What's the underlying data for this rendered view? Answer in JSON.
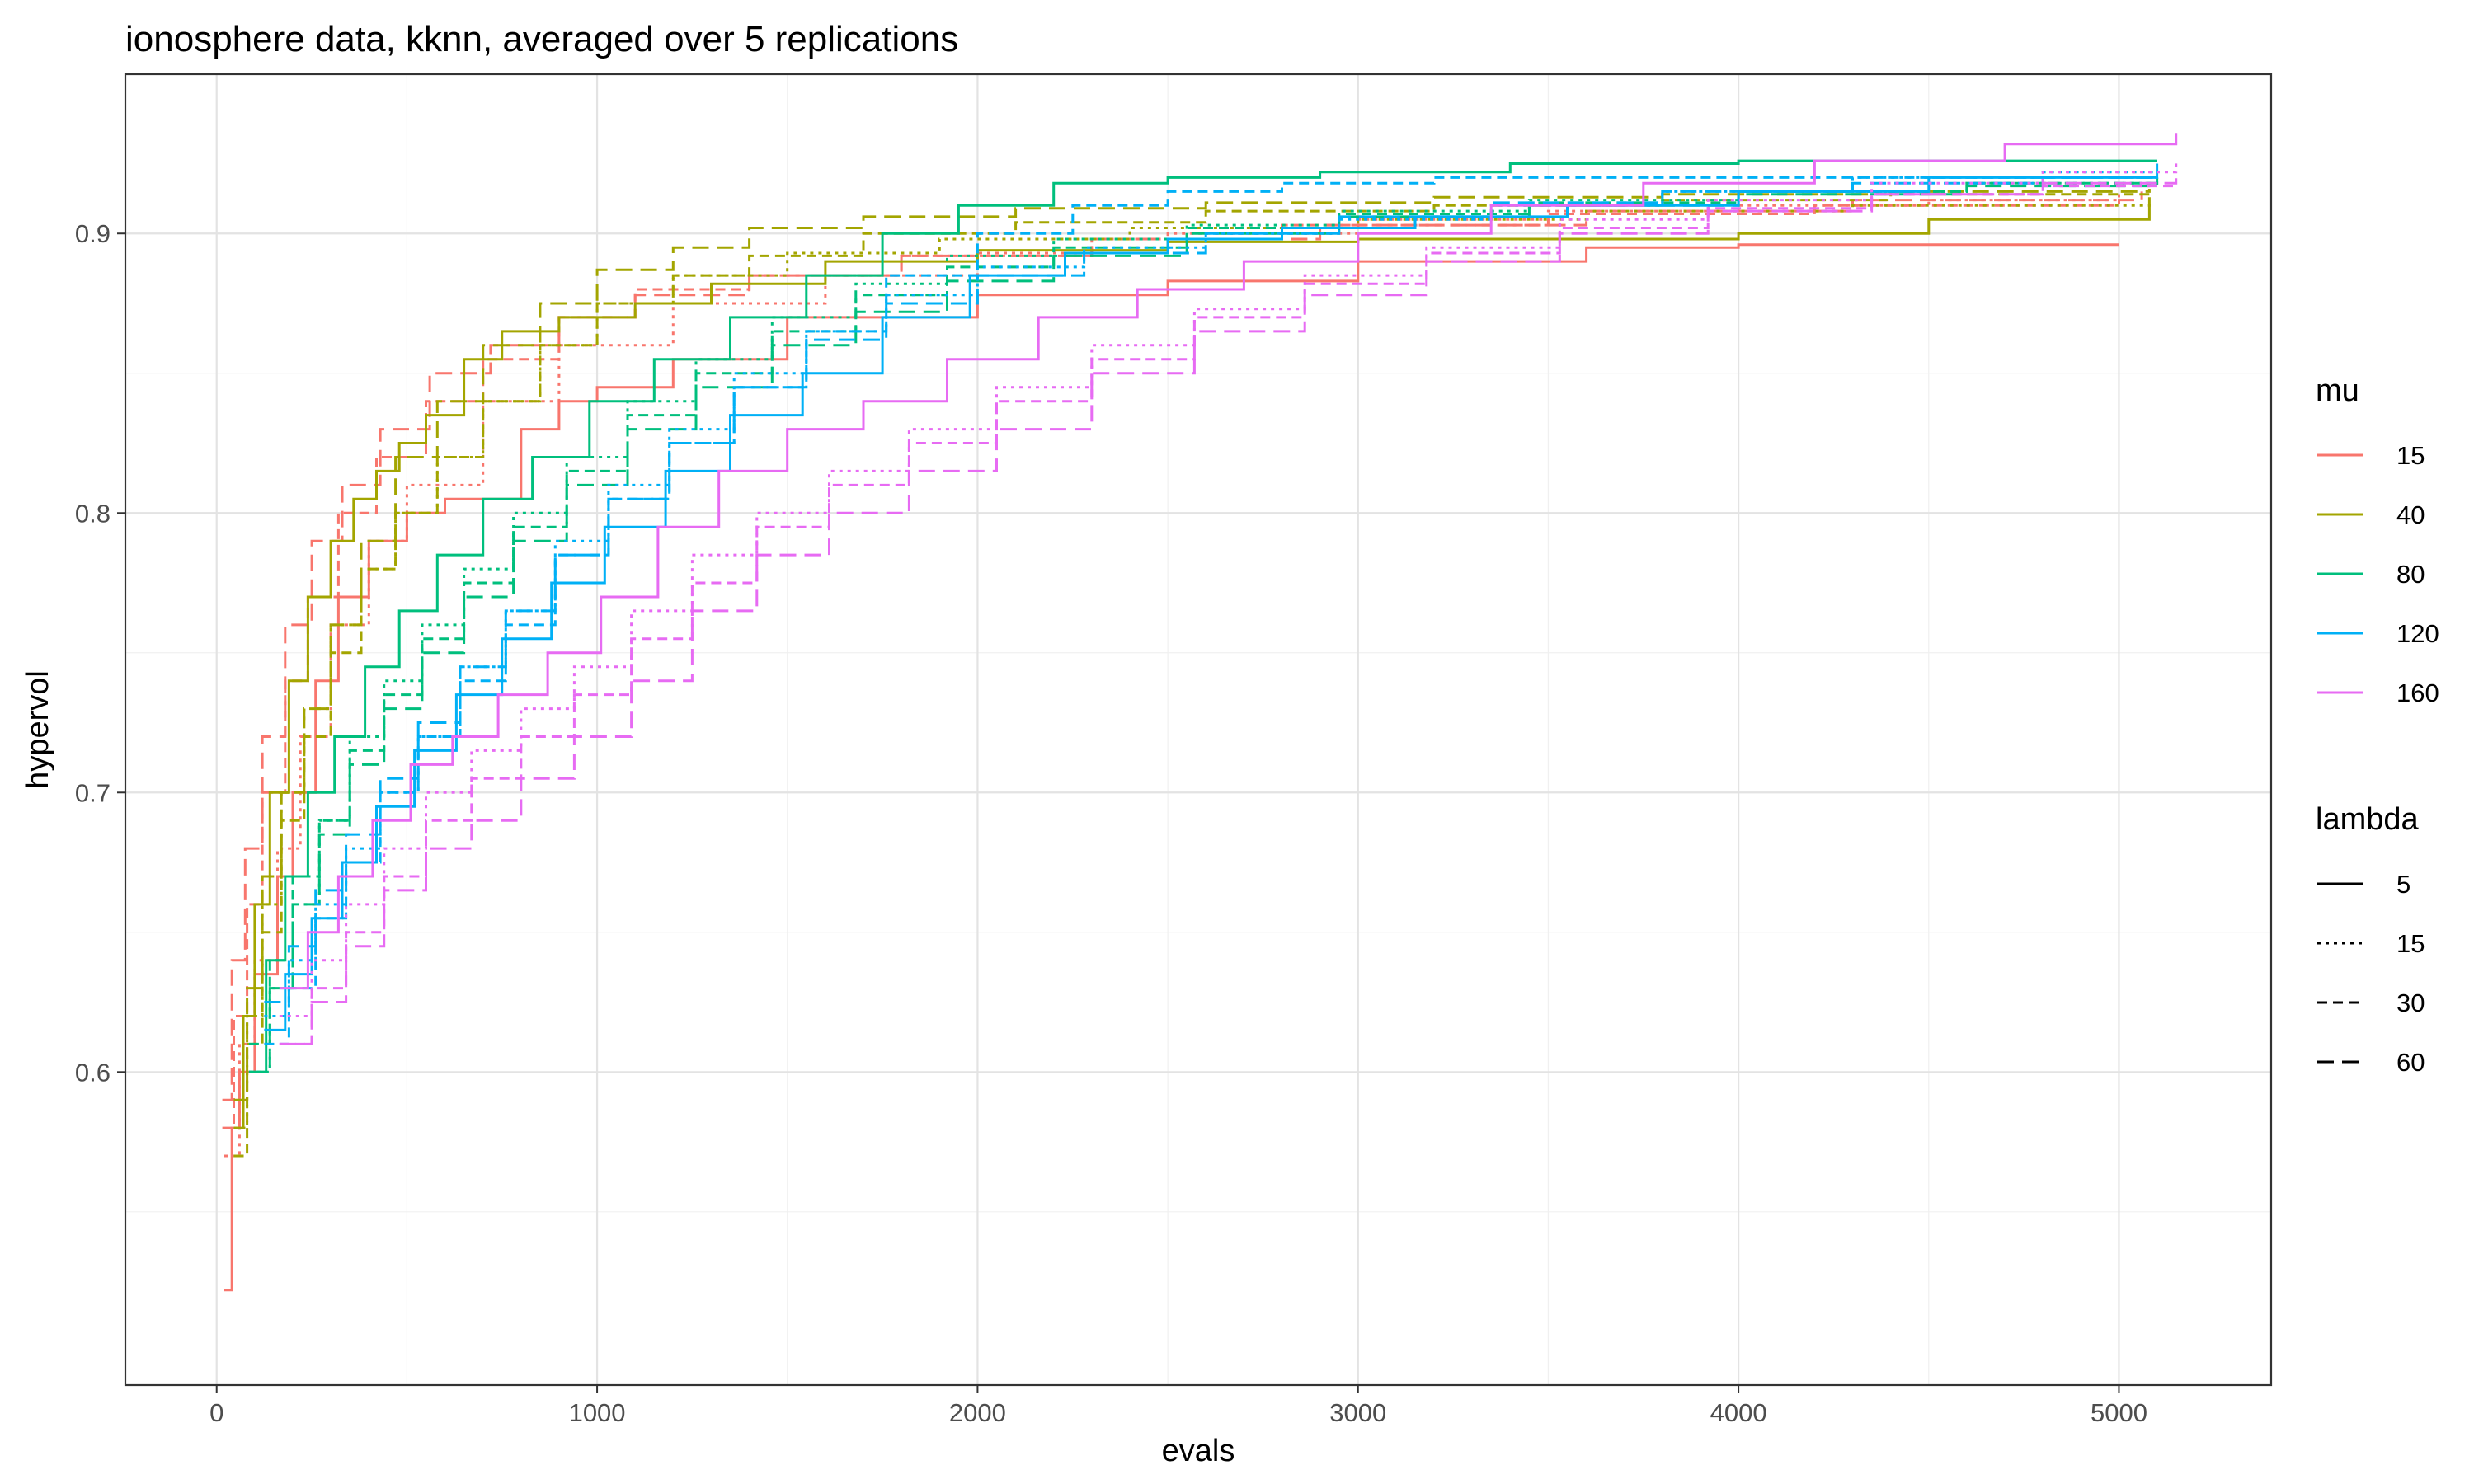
{
  "chart_data": {
    "type": "line",
    "title": "ionosphere data, kknn, averaged over 5 replications",
    "xlabel": "evals",
    "ylabel": "hypervol",
    "xlim": [
      -240,
      5400
    ],
    "ylim": [
      0.488,
      0.957
    ],
    "x_ticks": [
      0,
      1000,
      2000,
      3000,
      4000,
      5000
    ],
    "x_tick_labels": [
      "0",
      "1000",
      "2000",
      "3000",
      "4000",
      "5000"
    ],
    "y_ticks": [
      0.6,
      0.7,
      0.8,
      0.9
    ],
    "y_tick_labels": [
      "0.6",
      "0.7",
      "0.8",
      "0.9"
    ],
    "grid": true,
    "step": true,
    "legend_position": "right",
    "legend_mu": {
      "title": "mu",
      "entries": [
        {
          "label": "15",
          "color": "#F8766D"
        },
        {
          "label": "40",
          "color": "#A3A500"
        },
        {
          "label": "80",
          "color": "#00BF7D"
        },
        {
          "label": "120",
          "color": "#00B0F6"
        },
        {
          "label": "160",
          "color": "#E76BF3"
        }
      ]
    },
    "legend_lambda": {
      "title": "lambda",
      "entries": [
        {
          "label": "5",
          "dash": "solid"
        },
        {
          "label": "15",
          "dash": "dotted"
        },
        {
          "label": "30",
          "dash": "dashed"
        },
        {
          "label": "60",
          "dash": "longdash"
        }
      ]
    },
    "series": [
      {
        "mu": "15",
        "lambda": "5",
        "x": [
          20,
          40,
          60,
          100,
          160,
          200,
          260,
          320,
          400,
          500,
          600,
          800,
          900,
          1000,
          1200,
          1500,
          2000,
          2500,
          3000,
          3600,
          4000,
          5000
        ],
        "y": [
          0.522,
          0.58,
          0.6,
          0.635,
          0.67,
          0.7,
          0.74,
          0.77,
          0.79,
          0.8,
          0.805,
          0.83,
          0.84,
          0.845,
          0.855,
          0.87,
          0.878,
          0.883,
          0.89,
          0.895,
          0.896,
          0.896
        ]
      },
      {
        "mu": "15",
        "lambda": "15",
        "x": [
          20,
          60,
          100,
          160,
          220,
          300,
          400,
          500,
          700,
          900,
          1200,
          1600,
          2000,
          2500,
          3000,
          3500,
          4000,
          4500,
          5000
        ],
        "y": [
          0.57,
          0.61,
          0.64,
          0.68,
          0.72,
          0.76,
          0.79,
          0.81,
          0.84,
          0.86,
          0.875,
          0.885,
          0.893,
          0.9,
          0.905,
          0.908,
          0.91,
          0.912,
          0.915
        ]
      },
      {
        "mu": "15",
        "lambda": "30",
        "x": [
          15,
          45,
          80,
          120,
          180,
          240,
          320,
          420,
          550,
          700,
          900,
          1100,
          1400,
          1800,
          2300,
          2800,
          3500,
          4200,
          5000
        ],
        "y": [
          0.58,
          0.62,
          0.66,
          0.7,
          0.74,
          0.77,
          0.8,
          0.82,
          0.84,
          0.855,
          0.87,
          0.88,
          0.885,
          0.892,
          0.898,
          0.903,
          0.907,
          0.91,
          0.912
        ]
      },
      {
        "mu": "15",
        "lambda": "60",
        "x": [
          15,
          40,
          75,
          120,
          180,
          250,
          330,
          430,
          560,
          720,
          900,
          1100,
          1400,
          1800,
          2300,
          2900,
          3600,
          4300,
          5060
        ],
        "y": [
          0.59,
          0.64,
          0.68,
          0.72,
          0.76,
          0.79,
          0.81,
          0.83,
          0.85,
          0.86,
          0.87,
          0.878,
          0.885,
          0.892,
          0.898,
          0.903,
          0.908,
          0.912,
          0.915
        ]
      },
      {
        "mu": "40",
        "lambda": "5",
        "x": [
          45,
          70,
          100,
          140,
          190,
          240,
          300,
          360,
          420,
          480,
          550,
          650,
          750,
          900,
          1100,
          1300,
          1600,
          2000,
          2500,
          3000,
          3500,
          4000,
          4500,
          5080
        ],
        "y": [
          0.58,
          0.62,
          0.66,
          0.7,
          0.74,
          0.77,
          0.79,
          0.805,
          0.815,
          0.825,
          0.835,
          0.855,
          0.865,
          0.87,
          0.875,
          0.882,
          0.89,
          0.894,
          0.897,
          0.898,
          0.898,
          0.9,
          0.905,
          0.913
        ]
      },
      {
        "mu": "40",
        "lambda": "15",
        "x": [
          45,
          80,
          120,
          170,
          230,
          300,
          380,
          470,
          580,
          700,
          850,
          1000,
          1200,
          1500,
          1900,
          2400,
          3000,
          3600,
          4300,
          5080
        ],
        "y": [
          0.58,
          0.62,
          0.66,
          0.7,
          0.73,
          0.76,
          0.78,
          0.8,
          0.82,
          0.84,
          0.86,
          0.875,
          0.885,
          0.893,
          0.898,
          0.902,
          0.905,
          0.908,
          0.91,
          0.912
        ]
      },
      {
        "mu": "40",
        "lambda": "30",
        "x": [
          45,
          80,
          120,
          170,
          230,
          300,
          380,
          470,
          580,
          700,
          850,
          1000,
          1200,
          1400,
          1700,
          2100,
          2600,
          3200,
          3800,
          4400,
          5080
        ],
        "y": [
          0.57,
          0.61,
          0.65,
          0.69,
          0.72,
          0.75,
          0.78,
          0.8,
          0.82,
          0.84,
          0.86,
          0.875,
          0.885,
          0.892,
          0.9,
          0.904,
          0.908,
          0.91,
          0.912,
          0.914,
          0.915
        ]
      },
      {
        "mu": "40",
        "lambda": "60",
        "x": [
          45,
          80,
          120,
          170,
          230,
          300,
          380,
          470,
          580,
          700,
          850,
          1000,
          1200,
          1400,
          1700,
          2100,
          2600,
          3200,
          3800,
          4400,
          5080
        ],
        "y": [
          0.59,
          0.63,
          0.67,
          0.7,
          0.73,
          0.76,
          0.79,
          0.82,
          0.84,
          0.86,
          0.875,
          0.887,
          0.895,
          0.902,
          0.906,
          0.909,
          0.911,
          0.913,
          0.914,
          0.915,
          0.916
        ]
      },
      {
        "mu": "80",
        "lambda": "5",
        "x": [
          85,
          130,
          180,
          240,
          310,
          390,
          480,
          580,
          700,
          830,
          980,
          1150,
          1350,
          1550,
          1750,
          1950,
          2200,
          2500,
          2900,
          3400,
          4000,
          4600,
          5100
        ],
        "y": [
          0.6,
          0.64,
          0.67,
          0.7,
          0.72,
          0.745,
          0.765,
          0.785,
          0.805,
          0.82,
          0.84,
          0.855,
          0.87,
          0.885,
          0.9,
          0.91,
          0.918,
          0.92,
          0.922,
          0.925,
          0.926,
          0.926,
          0.926
        ]
      },
      {
        "mu": "80",
        "lambda": "15",
        "x": [
          85,
          140,
          200,
          270,
          350,
          440,
          540,
          650,
          780,
          920,
          1080,
          1260,
          1460,
          1680,
          1920,
          2200,
          2550,
          2950,
          3450,
          4000,
          4600,
          5100
        ],
        "y": [
          0.6,
          0.63,
          0.66,
          0.69,
          0.72,
          0.74,
          0.76,
          0.78,
          0.8,
          0.82,
          0.84,
          0.855,
          0.87,
          0.882,
          0.892,
          0.898,
          0.903,
          0.908,
          0.912,
          0.915,
          0.918,
          0.92
        ]
      },
      {
        "mu": "80",
        "lambda": "30",
        "x": [
          85,
          140,
          200,
          270,
          350,
          440,
          540,
          650,
          780,
          920,
          1080,
          1260,
          1460,
          1680,
          1920,
          2200,
          2550,
          2950,
          3450,
          4000,
          4600,
          5100
        ],
        "y": [
          0.61,
          0.64,
          0.67,
          0.69,
          0.715,
          0.735,
          0.755,
          0.775,
          0.795,
          0.815,
          0.835,
          0.85,
          0.865,
          0.878,
          0.888,
          0.895,
          0.902,
          0.907,
          0.911,
          0.915,
          0.918,
          0.92
        ]
      },
      {
        "mu": "80",
        "lambda": "60",
        "x": [
          85,
          140,
          200,
          270,
          350,
          440,
          540,
          650,
          780,
          920,
          1080,
          1260,
          1460,
          1680,
          1920,
          2200,
          2550,
          2950,
          3450,
          4000,
          4600,
          5100
        ],
        "y": [
          0.6,
          0.63,
          0.66,
          0.685,
          0.71,
          0.73,
          0.75,
          0.77,
          0.79,
          0.81,
          0.83,
          0.845,
          0.86,
          0.872,
          0.883,
          0.892,
          0.9,
          0.906,
          0.91,
          0.914,
          0.917,
          0.92
        ]
      },
      {
        "mu": "120",
        "lambda": "5",
        "x": [
          125,
          180,
          250,
          330,
          420,
          520,
          630,
          750,
          880,
          1020,
          1180,
          1350,
          1540,
          1750,
          1980,
          2230,
          2500,
          2800,
          3150,
          3550,
          4000,
          4500,
          5100
        ],
        "y": [
          0.615,
          0.635,
          0.655,
          0.675,
          0.695,
          0.715,
          0.735,
          0.755,
          0.775,
          0.795,
          0.815,
          0.835,
          0.85,
          0.87,
          0.885,
          0.893,
          0.898,
          0.902,
          0.906,
          0.91,
          0.915,
          0.92,
          0.925
        ]
      },
      {
        "mu": "120",
        "lambda": "15",
        "x": [
          125,
          190,
          260,
          340,
          430,
          530,
          640,
          760,
          890,
          1030,
          1190,
          1360,
          1550,
          1760,
          2000,
          2280,
          2600,
          2950,
          3350,
          3800,
          4300,
          4800,
          5100
        ],
        "y": [
          0.62,
          0.64,
          0.66,
          0.68,
          0.7,
          0.72,
          0.745,
          0.765,
          0.79,
          0.81,
          0.83,
          0.85,
          0.865,
          0.878,
          0.888,
          0.895,
          0.9,
          0.905,
          0.91,
          0.915,
          0.92,
          0.922,
          0.922
        ]
      },
      {
        "mu": "120",
        "lambda": "30",
        "x": [
          125,
          190,
          260,
          340,
          430,
          530,
          640,
          760,
          890,
          1030,
          1190,
          1360,
          1550,
          1760,
          2000,
          2250,
          2500,
          2800,
          3200,
          3700,
          4200,
          4700,
          5100
        ],
        "y": [
          0.61,
          0.63,
          0.655,
          0.675,
          0.7,
          0.72,
          0.74,
          0.76,
          0.785,
          0.805,
          0.825,
          0.845,
          0.865,
          0.885,
          0.9,
          0.91,
          0.915,
          0.918,
          0.92,
          0.92,
          0.92,
          0.92,
          0.92
        ]
      },
      {
        "mu": "120",
        "lambda": "60",
        "x": [
          125,
          190,
          260,
          340,
          430,
          530,
          640,
          760,
          890,
          1030,
          1190,
          1360,
          1550,
          1760,
          2000,
          2280,
          2600,
          2950,
          3350,
          3800,
          4300,
          4800,
          5100
        ],
        "y": [
          0.625,
          0.645,
          0.665,
          0.685,
          0.705,
          0.725,
          0.745,
          0.765,
          0.785,
          0.805,
          0.825,
          0.845,
          0.862,
          0.875,
          0.885,
          0.893,
          0.9,
          0.906,
          0.911,
          0.915,
          0.918,
          0.92,
          0.921
        ]
      },
      {
        "mu": "160",
        "lambda": "5",
        "x": [
          165,
          240,
          320,
          410,
          510,
          620,
          740,
          870,
          1010,
          1160,
          1320,
          1500,
          1700,
          1920,
          2160,
          2420,
          2700,
          3000,
          3350,
          3750,
          4200,
          4700,
          5150
        ],
        "y": [
          0.63,
          0.65,
          0.67,
          0.69,
          0.71,
          0.72,
          0.735,
          0.75,
          0.77,
          0.795,
          0.815,
          0.83,
          0.84,
          0.855,
          0.87,
          0.88,
          0.89,
          0.9,
          0.91,
          0.918,
          0.926,
          0.932,
          0.936
        ]
      },
      {
        "mu": "160",
        "lambda": "15",
        "x": [
          165,
          250,
          340,
          440,
          550,
          670,
          800,
          940,
          1090,
          1250,
          1420,
          1610,
          1820,
          2050,
          2300,
          2570,
          2860,
          3180,
          3530,
          3920,
          4350,
          4800,
          5150
        ],
        "y": [
          0.62,
          0.64,
          0.66,
          0.68,
          0.7,
          0.715,
          0.73,
          0.745,
          0.765,
          0.785,
          0.8,
          0.815,
          0.83,
          0.845,
          0.86,
          0.873,
          0.885,
          0.895,
          0.905,
          0.912,
          0.918,
          0.922,
          0.926
        ]
      },
      {
        "mu": "160",
        "lambda": "30",
        "x": [
          165,
          250,
          340,
          440,
          550,
          670,
          800,
          940,
          1090,
          1250,
          1420,
          1610,
          1820,
          2050,
          2300,
          2570,
          2860,
          3180,
          3530,
          3920,
          4350,
          4800,
          5150
        ],
        "y": [
          0.61,
          0.63,
          0.65,
          0.67,
          0.69,
          0.705,
          0.72,
          0.735,
          0.755,
          0.775,
          0.795,
          0.81,
          0.825,
          0.84,
          0.855,
          0.87,
          0.882,
          0.893,
          0.902,
          0.909,
          0.914,
          0.917,
          0.918
        ]
      },
      {
        "mu": "160",
        "lambda": "60",
        "x": [
          165,
          250,
          340,
          440,
          550,
          670,
          800,
          940,
          1090,
          1250,
          1420,
          1610,
          1820,
          2050,
          2300,
          2570,
          2860,
          3180,
          3530,
          3920,
          4350,
          4800,
          5150
        ],
        "y": [
          0.61,
          0.625,
          0.645,
          0.665,
          0.68,
          0.69,
          0.705,
          0.72,
          0.74,
          0.765,
          0.785,
          0.8,
          0.815,
          0.83,
          0.85,
          0.865,
          0.878,
          0.89,
          0.9,
          0.908,
          0.914,
          0.918,
          0.92
        ]
      }
    ]
  }
}
